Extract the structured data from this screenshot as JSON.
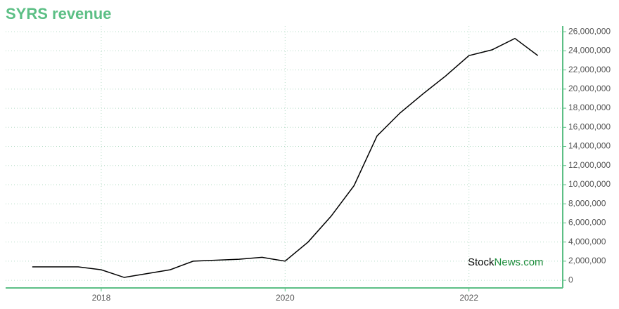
{
  "chart_data": {
    "type": "line",
    "title": "SYRS revenue",
    "x": [
      2017.25,
      2017.75,
      2018.0,
      2018.25,
      2018.75,
      2019.0,
      2019.5,
      2019.75,
      2020.0,
      2020.25,
      2020.5,
      2020.75,
      2021.0,
      2021.25,
      2021.5,
      2021.75,
      2022.0,
      2022.25,
      2022.5,
      2022.75
    ],
    "series": [
      {
        "color": "#000000",
        "values": [
          1400000,
          1400000,
          1100000,
          300000,
          1100000,
          2000000,
          2200000,
          2400000,
          2000000,
          4000000,
          6700000,
          9900000,
          15100000,
          17500000,
          19500000,
          21400000,
          23500000,
          24100000,
          25300000,
          23500000
        ]
      }
    ],
    "xlim": [
      2016.96,
      2023.02
    ],
    "xticks": [
      2018,
      2020,
      2022
    ],
    "ylim": [
      -800000,
      26600000
    ],
    "yticks": [
      0,
      {
        "value": 2000000,
        "label": "2,000,000"
      },
      {
        "value": 4000000,
        "label": "4,000,000"
      },
      {
        "value": 6000000,
        "label": "6,000,000"
      },
      {
        "value": 8000000,
        "label": "8,000,000"
      },
      {
        "value": 10000000,
        "label": "10,000,000"
      },
      {
        "value": 12000000,
        "label": "12,000,000"
      },
      {
        "value": 14000000,
        "label": "14,000,000"
      },
      {
        "value": 16000000,
        "label": "16,000,000"
      },
      {
        "value": 18000000,
        "label": "18,000,000"
      },
      {
        "value": 20000000,
        "label": "20,000,000"
      },
      {
        "value": 22000000,
        "label": "22,000,000"
      },
      {
        "value": 24000000,
        "label": "24,000,000"
      },
      {
        "value": 26000000,
        "label": "26,000,000"
      }
    ],
    "grid": true,
    "axis_color": "#5cbf85",
    "grid_color": "#b5dcc6",
    "watermark": {
      "left": "Stock",
      "right": "News.com",
      "left_color": "#000000",
      "right_color": "#1a8c3a"
    }
  }
}
